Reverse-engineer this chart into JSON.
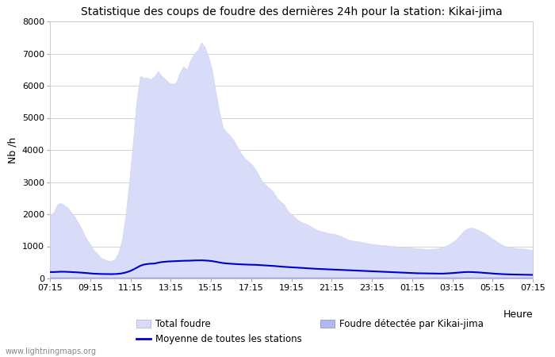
{
  "title": "Statistique des coups de foudre des dernières 24h pour la station: Kikai-jima",
  "ylabel": "Nb /h",
  "xlabel_right": "Heure",
  "watermark": "www.lightningmaps.org",
  "x_ticks": [
    "07:15",
    "09:15",
    "11:15",
    "13:15",
    "15:15",
    "17:15",
    "19:15",
    "21:15",
    "23:15",
    "01:15",
    "03:15",
    "05:15",
    "07:15"
  ],
  "ylim": [
    0,
    8000
  ],
  "yticks": [
    0,
    1000,
    2000,
    3000,
    4000,
    5000,
    6000,
    7000,
    8000
  ],
  "bg_color": "#ffffff",
  "total_foudre_color": "#d8dcf8",
  "total_foudre_edge": "#c8ccee",
  "kikai_color": "#b0b8f0",
  "kikai_edge": "#9898d8",
  "moyenne_color": "#0000cc",
  "legend_labels": [
    "Total foudre",
    "Moyenne de toutes les stations",
    "Foudre détectée par Kikai-jima"
  ],
  "total_foudre": [
    1980,
    2050,
    2300,
    2350,
    2280,
    2200,
    2050,
    1900,
    1700,
    1500,
    1250,
    1100,
    900,
    800,
    650,
    600,
    550,
    550,
    600,
    800,
    1200,
    2000,
    3000,
    4200,
    5500,
    6300,
    6250,
    6250,
    6200,
    6300,
    6450,
    6300,
    6200,
    6100,
    6050,
    6100,
    6400,
    6600,
    6500,
    6800,
    7000,
    7100,
    7350,
    7200,
    6900,
    6500,
    5800,
    5200,
    4700,
    4550,
    4450,
    4300,
    4100,
    3900,
    3750,
    3650,
    3550,
    3400,
    3200,
    3000,
    2900,
    2800,
    2700,
    2500,
    2400,
    2300,
    2100,
    2000,
    1900,
    1800,
    1750,
    1700,
    1650,
    1580,
    1520,
    1480,
    1450,
    1420,
    1400,
    1380,
    1350,
    1300,
    1250,
    1200,
    1180,
    1160,
    1150,
    1120,
    1100,
    1080,
    1060,
    1050,
    1040,
    1030,
    1020,
    1010,
    1000,
    990,
    980,
    970,
    960,
    950,
    940,
    930,
    920,
    910,
    920,
    930,
    950,
    980,
    1020,
    1080,
    1150,
    1250,
    1380,
    1500,
    1560,
    1580,
    1550,
    1500,
    1450,
    1380,
    1300,
    1220,
    1150,
    1080,
    1020,
    980,
    960,
    950,
    940,
    930,
    920,
    900,
    890
  ],
  "kikai_foudre": [
    15,
    15,
    15,
    15,
    15,
    15,
    15,
    15,
    15,
    15,
    15,
    15,
    15,
    15,
    15,
    15,
    15,
    15,
    15,
    15,
    15,
    15,
    15,
    15,
    15,
    15,
    15,
    15,
    15,
    15,
    15,
    15,
    15,
    15,
    15,
    15,
    15,
    15,
    15,
    15,
    15,
    15,
    15,
    15,
    15,
    15,
    15,
    15,
    15,
    15,
    15,
    15,
    15,
    15,
    15,
    15,
    15,
    15,
    15,
    15,
    15,
    15,
    15,
    15,
    15,
    15,
    15,
    15,
    15,
    15,
    15,
    15,
    15,
    15,
    15,
    15,
    15,
    15,
    15,
    15,
    15,
    15,
    15,
    15,
    15,
    15,
    15,
    15,
    15,
    15,
    15,
    15,
    15,
    15,
    15,
    15,
    15,
    15,
    15,
    15,
    15,
    15,
    15,
    15,
    15,
    15,
    15,
    15,
    15,
    15,
    15,
    15,
    15,
    15,
    15,
    15,
    15,
    15,
    15,
    15,
    15,
    15,
    15,
    15,
    15,
    15,
    15,
    15,
    15,
    15,
    15,
    15,
    15,
    15,
    15
  ],
  "moyenne": [
    200,
    200,
    205,
    210,
    210,
    205,
    200,
    195,
    188,
    180,
    170,
    160,
    150,
    145,
    140,
    138,
    135,
    135,
    138,
    145,
    160,
    185,
    220,
    270,
    330,
    390,
    430,
    450,
    460,
    465,
    490,
    510,
    520,
    530,
    535,
    540,
    545,
    550,
    552,
    555,
    560,
    562,
    565,
    560,
    552,
    540,
    520,
    500,
    480,
    468,
    460,
    452,
    445,
    440,
    435,
    430,
    428,
    425,
    418,
    410,
    405,
    398,
    390,
    380,
    370,
    362,
    355,
    348,
    340,
    332,
    325,
    318,
    312,
    305,
    300,
    295,
    290,
    285,
    280,
    275,
    270,
    265,
    260,
    255,
    250,
    245,
    240,
    235,
    230,
    225,
    220,
    215,
    210,
    205,
    200,
    195,
    190,
    185,
    180,
    175,
    170,
    165,
    162,
    160,
    158,
    155,
    152,
    150,
    148,
    150,
    155,
    162,
    170,
    180,
    190,
    198,
    202,
    200,
    195,
    188,
    180,
    172,
    162,
    152,
    145,
    138,
    132,
    128,
    125,
    122,
    120,
    118,
    116,
    114,
    112
  ]
}
